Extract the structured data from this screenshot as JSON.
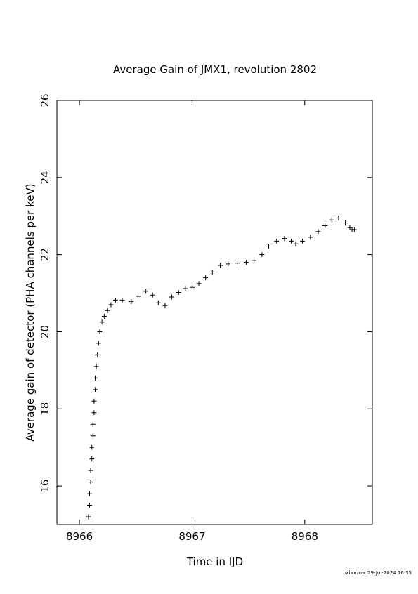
{
  "chart_data": {
    "type": "scatter",
    "title": "Average Gain of JMX1, revolution 2802",
    "x_label": "Time in IJD",
    "y_label": "Average gain of detector (PHA channels per keV)",
    "footer": "oxborrow 29-Jul-2024 16:35",
    "color": "#000000",
    "xlim": [
      8965.8,
      8968.6
    ],
    "xticks": [
      8966,
      8967,
      8968
    ],
    "ylim": [
      15,
      26
    ],
    "yticks": [
      16,
      18,
      20,
      22,
      24,
      26
    ],
    "x": [
      8966.08,
      8966.09,
      8966.09,
      8966.1,
      8966.1,
      8966.11,
      8966.11,
      8966.12,
      8966.12,
      8966.13,
      8966.13,
      8966.14,
      8966.14,
      8966.15,
      8966.16,
      8966.17,
      8966.18,
      8966.2,
      8966.22,
      8966.25,
      8966.28,
      8966.32,
      8966.38,
      8966.46,
      8966.52,
      8966.59,
      8966.65,
      8966.7,
      8966.76,
      8966.82,
      8966.88,
      8966.94,
      8967.0,
      8967.06,
      8967.12,
      8967.18,
      8967.25,
      8967.32,
      8967.4,
      8967.48,
      8967.55,
      8967.62,
      8967.68,
      8967.75,
      8967.82,
      8967.88,
      8967.92,
      8967.98,
      8968.05,
      8968.12,
      8968.18,
      8968.24,
      8968.3,
      8968.36,
      8968.4,
      8968.42,
      8968.44
    ],
    "values": [
      15.2,
      15.5,
      15.8,
      16.1,
      16.4,
      16.7,
      17.0,
      17.3,
      17.6,
      17.9,
      18.2,
      18.5,
      18.8,
      19.1,
      19.4,
      19.7,
      20.0,
      20.25,
      20.4,
      20.55,
      20.7,
      20.82,
      20.82,
      20.78,
      20.92,
      21.05,
      20.95,
      20.75,
      20.68,
      20.9,
      21.02,
      21.12,
      21.15,
      21.25,
      21.4,
      21.55,
      21.72,
      21.76,
      21.78,
      21.8,
      21.85,
      22.0,
      22.22,
      22.35,
      22.42,
      22.35,
      22.28,
      22.35,
      22.45,
      22.6,
      22.75,
      22.9,
      22.95,
      22.82,
      22.7,
      22.65,
      22.65
    ]
  }
}
